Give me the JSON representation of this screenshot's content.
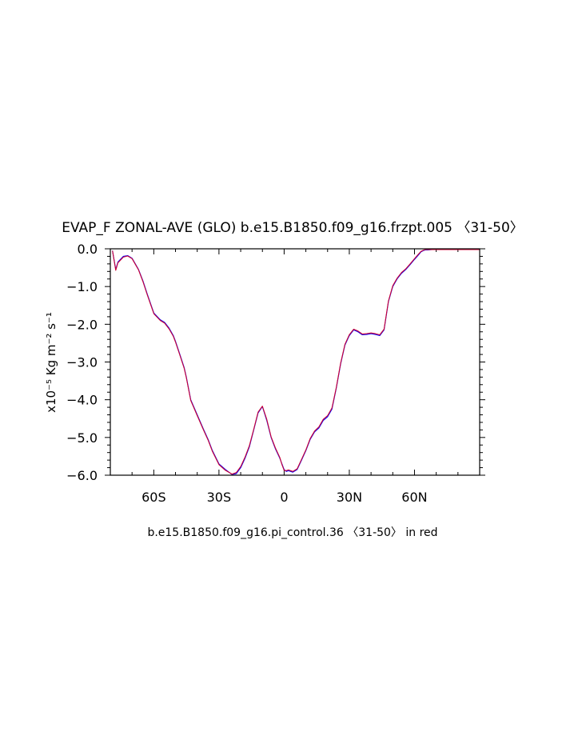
{
  "chart_data": {
    "type": "line",
    "title": "EVAP_F ZONAL-AVE (GLO) b.e15.B1850.f09_g16.frzpt.005 〈31-50〉",
    "ylabel": "x10⁻⁵ Kg m⁻² s⁻¹",
    "caption": "b.e15.B1850.f09_g16.pi_control.36 〈31-50〉 in red",
    "xlim": [
      -80,
      90
    ],
    "ylim": [
      -6.0,
      0.0
    ],
    "grid": false,
    "xticks": [
      {
        "value": -60,
        "label": "60S"
      },
      {
        "value": -30,
        "label": "30S"
      },
      {
        "value": 0,
        "label": "0"
      },
      {
        "value": 30,
        "label": "30N"
      },
      {
        "value": 60,
        "label": "60N"
      }
    ],
    "yticks": [
      {
        "value": 0.0,
        "label": "0.0"
      },
      {
        "value": -1.0,
        "label": "−1.0"
      },
      {
        "value": -2.0,
        "label": "−2.0"
      },
      {
        "value": -3.0,
        "label": "−3.0"
      },
      {
        "value": -4.0,
        "label": "−4.0"
      },
      {
        "value": -5.0,
        "label": "−5.0"
      },
      {
        "value": -6.0,
        "label": "−6.0"
      }
    ],
    "x": [
      -79,
      -77.5,
      -76.5,
      -74,
      -72,
      -70,
      -68,
      -67,
      -65,
      -63,
      -60,
      -57,
      -55,
      -53,
      -51,
      -50,
      -48,
      -46,
      -45,
      -43,
      -40,
      -37,
      -35,
      -33,
      -30,
      -27,
      -24,
      -22,
      -20,
      -18,
      -16,
      -14,
      -12,
      -10,
      -8,
      -6,
      -4,
      -2,
      -1,
      0,
      1,
      2,
      4,
      6,
      8,
      10,
      12,
      14,
      16,
      18,
      20,
      22,
      24,
      26,
      28,
      30,
      32,
      34,
      36,
      38,
      40,
      42,
      44,
      46,
      48,
      50,
      52,
      54,
      56,
      58,
      60,
      62,
      63,
      64,
      65,
      66,
      68,
      70,
      72,
      74,
      76,
      78,
      80,
      84,
      88,
      90
    ],
    "series": [
      {
        "color": "#0000ff",
        "values": [
          -0.05,
          -0.55,
          -0.35,
          -0.2,
          -0.18,
          -0.25,
          -0.45,
          -0.55,
          -0.85,
          -1.2,
          -1.7,
          -1.88,
          -1.95,
          -2.1,
          -2.3,
          -2.45,
          -2.8,
          -3.15,
          -3.4,
          -4.0,
          -4.4,
          -4.8,
          -5.05,
          -5.35,
          -5.7,
          -5.85,
          -5.98,
          -5.96,
          -5.8,
          -5.55,
          -5.25,
          -4.8,
          -4.35,
          -4.18,
          -4.55,
          -5.0,
          -5.3,
          -5.55,
          -5.7,
          -5.85,
          -5.9,
          -5.88,
          -5.92,
          -5.85,
          -5.6,
          -5.35,
          -5.05,
          -4.85,
          -4.75,
          -4.55,
          -4.45,
          -4.25,
          -3.7,
          -3.05,
          -2.55,
          -2.3,
          -2.15,
          -2.2,
          -2.28,
          -2.27,
          -2.25,
          -2.27,
          -2.3,
          -2.15,
          -1.4,
          -1.0,
          -0.8,
          -0.65,
          -0.55,
          -0.42,
          -0.28,
          -0.15,
          -0.08,
          -0.05,
          -0.03,
          -0.03,
          -0.02,
          -0.02,
          -0.02,
          -0.02,
          -0.02,
          -0.02,
          -0.02,
          -0.02,
          -0.02,
          -0.02
        ]
      },
      {
        "color": "#cc0033",
        "values": [
          -0.05,
          -0.57,
          -0.37,
          -0.22,
          -0.19,
          -0.26,
          -0.46,
          -0.56,
          -0.87,
          -1.22,
          -1.72,
          -1.9,
          -1.97,
          -2.12,
          -2.32,
          -2.47,
          -2.82,
          -3.17,
          -3.42,
          -4.02,
          -4.42,
          -4.82,
          -5.07,
          -5.37,
          -5.72,
          -5.87,
          -5.97,
          -5.93,
          -5.77,
          -5.52,
          -5.22,
          -4.78,
          -4.33,
          -4.17,
          -4.52,
          -4.98,
          -5.28,
          -5.53,
          -5.72,
          -5.87,
          -5.88,
          -5.86,
          -5.9,
          -5.83,
          -5.58,
          -5.33,
          -5.03,
          -4.83,
          -4.72,
          -4.52,
          -4.42,
          -4.22,
          -3.68,
          -3.03,
          -2.53,
          -2.28,
          -2.13,
          -2.18,
          -2.26,
          -2.25,
          -2.23,
          -2.25,
          -2.28,
          -2.13,
          -1.38,
          -0.98,
          -0.78,
          -0.63,
          -0.53,
          -0.4,
          -0.26,
          -0.13,
          -0.07,
          -0.04,
          -0.02,
          -0.02,
          -0.02,
          -0.02,
          -0.02,
          -0.02,
          -0.02,
          -0.02,
          -0.02,
          -0.02,
          -0.02,
          -0.02
        ]
      }
    ]
  }
}
